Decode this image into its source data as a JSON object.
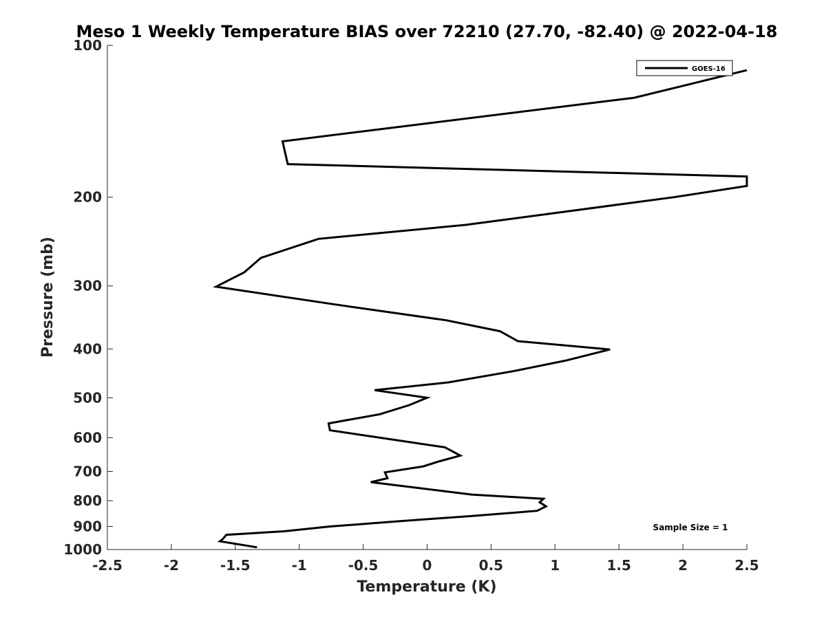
{
  "chart_data": {
    "type": "line",
    "title": "Meso 1 Weekly Temperature BIAS over 72210 (27.70, -82.40) @ 2022-04-18",
    "xlabel": "Temperature (K)",
    "ylabel": "Pressure (mb)",
    "xlim": [
      -2.5,
      2.5
    ],
    "ylim": [
      100,
      1000
    ],
    "y_scale": "log",
    "y_reversed": true,
    "x_ticks": [
      -2.5,
      -2,
      -1.5,
      -1,
      -0.5,
      0,
      0.5,
      1,
      1.5,
      2,
      2.5
    ],
    "x_tick_labels": [
      "-2.5",
      "-2",
      "-1.5",
      "-1",
      "-0.5",
      "0",
      "0.5",
      "1",
      "1.5",
      "2",
      "2.5"
    ],
    "y_ticks": [
      100,
      200,
      300,
      400,
      500,
      600,
      700,
      800,
      900,
      1000
    ],
    "y_tick_labels": [
      "100",
      "200",
      "300",
      "400",
      "500",
      "600",
      "700",
      "800",
      "900",
      "1000"
    ],
    "grid": false,
    "legend_position": "top-right",
    "annotation": "Sample Size = 1",
    "series": [
      {
        "name": "GOES-16",
        "color": "#000000",
        "points": [
          [
            2.5,
            112
          ],
          [
            1.62,
            127
          ],
          [
            -1.13,
            155
          ],
          [
            -1.09,
            172
          ],
          [
            2.5,
            182
          ],
          [
            2.5,
            190
          ],
          [
            1.93,
            200
          ],
          [
            0.3,
            227
          ],
          [
            -0.85,
            242
          ],
          [
            -1.3,
            264
          ],
          [
            -1.43,
            282
          ],
          [
            -1.65,
            301
          ],
          [
            -0.7,
            327
          ],
          [
            0.15,
            351
          ],
          [
            0.57,
            369
          ],
          [
            0.71,
            386
          ],
          [
            1.43,
            401
          ],
          [
            1.08,
            422
          ],
          [
            0.67,
            443
          ],
          [
            0.17,
            466
          ],
          [
            -0.41,
            483
          ],
          [
            0.0,
            500
          ],
          [
            -0.14,
            517
          ],
          [
            -0.37,
            539
          ],
          [
            -0.77,
            562
          ],
          [
            -0.76,
            580
          ],
          [
            0.14,
            627
          ],
          [
            0.26,
            651
          ],
          [
            0.09,
            669
          ],
          [
            -0.03,
            684
          ],
          [
            -0.33,
            703
          ],
          [
            -0.31,
            722
          ],
          [
            -0.44,
            735
          ],
          [
            0.35,
            778
          ],
          [
            0.91,
            793
          ],
          [
            0.88,
            806
          ],
          [
            0.93,
            821
          ],
          [
            0.86,
            838
          ],
          [
            0.35,
            858
          ],
          [
            -0.25,
            880
          ],
          [
            -0.76,
            900
          ],
          [
            -1.12,
            920
          ],
          [
            -1.57,
            935
          ],
          [
            -1.6,
            955
          ],
          [
            -1.62,
            963
          ],
          [
            -1.33,
            990
          ]
        ]
      }
    ]
  }
}
